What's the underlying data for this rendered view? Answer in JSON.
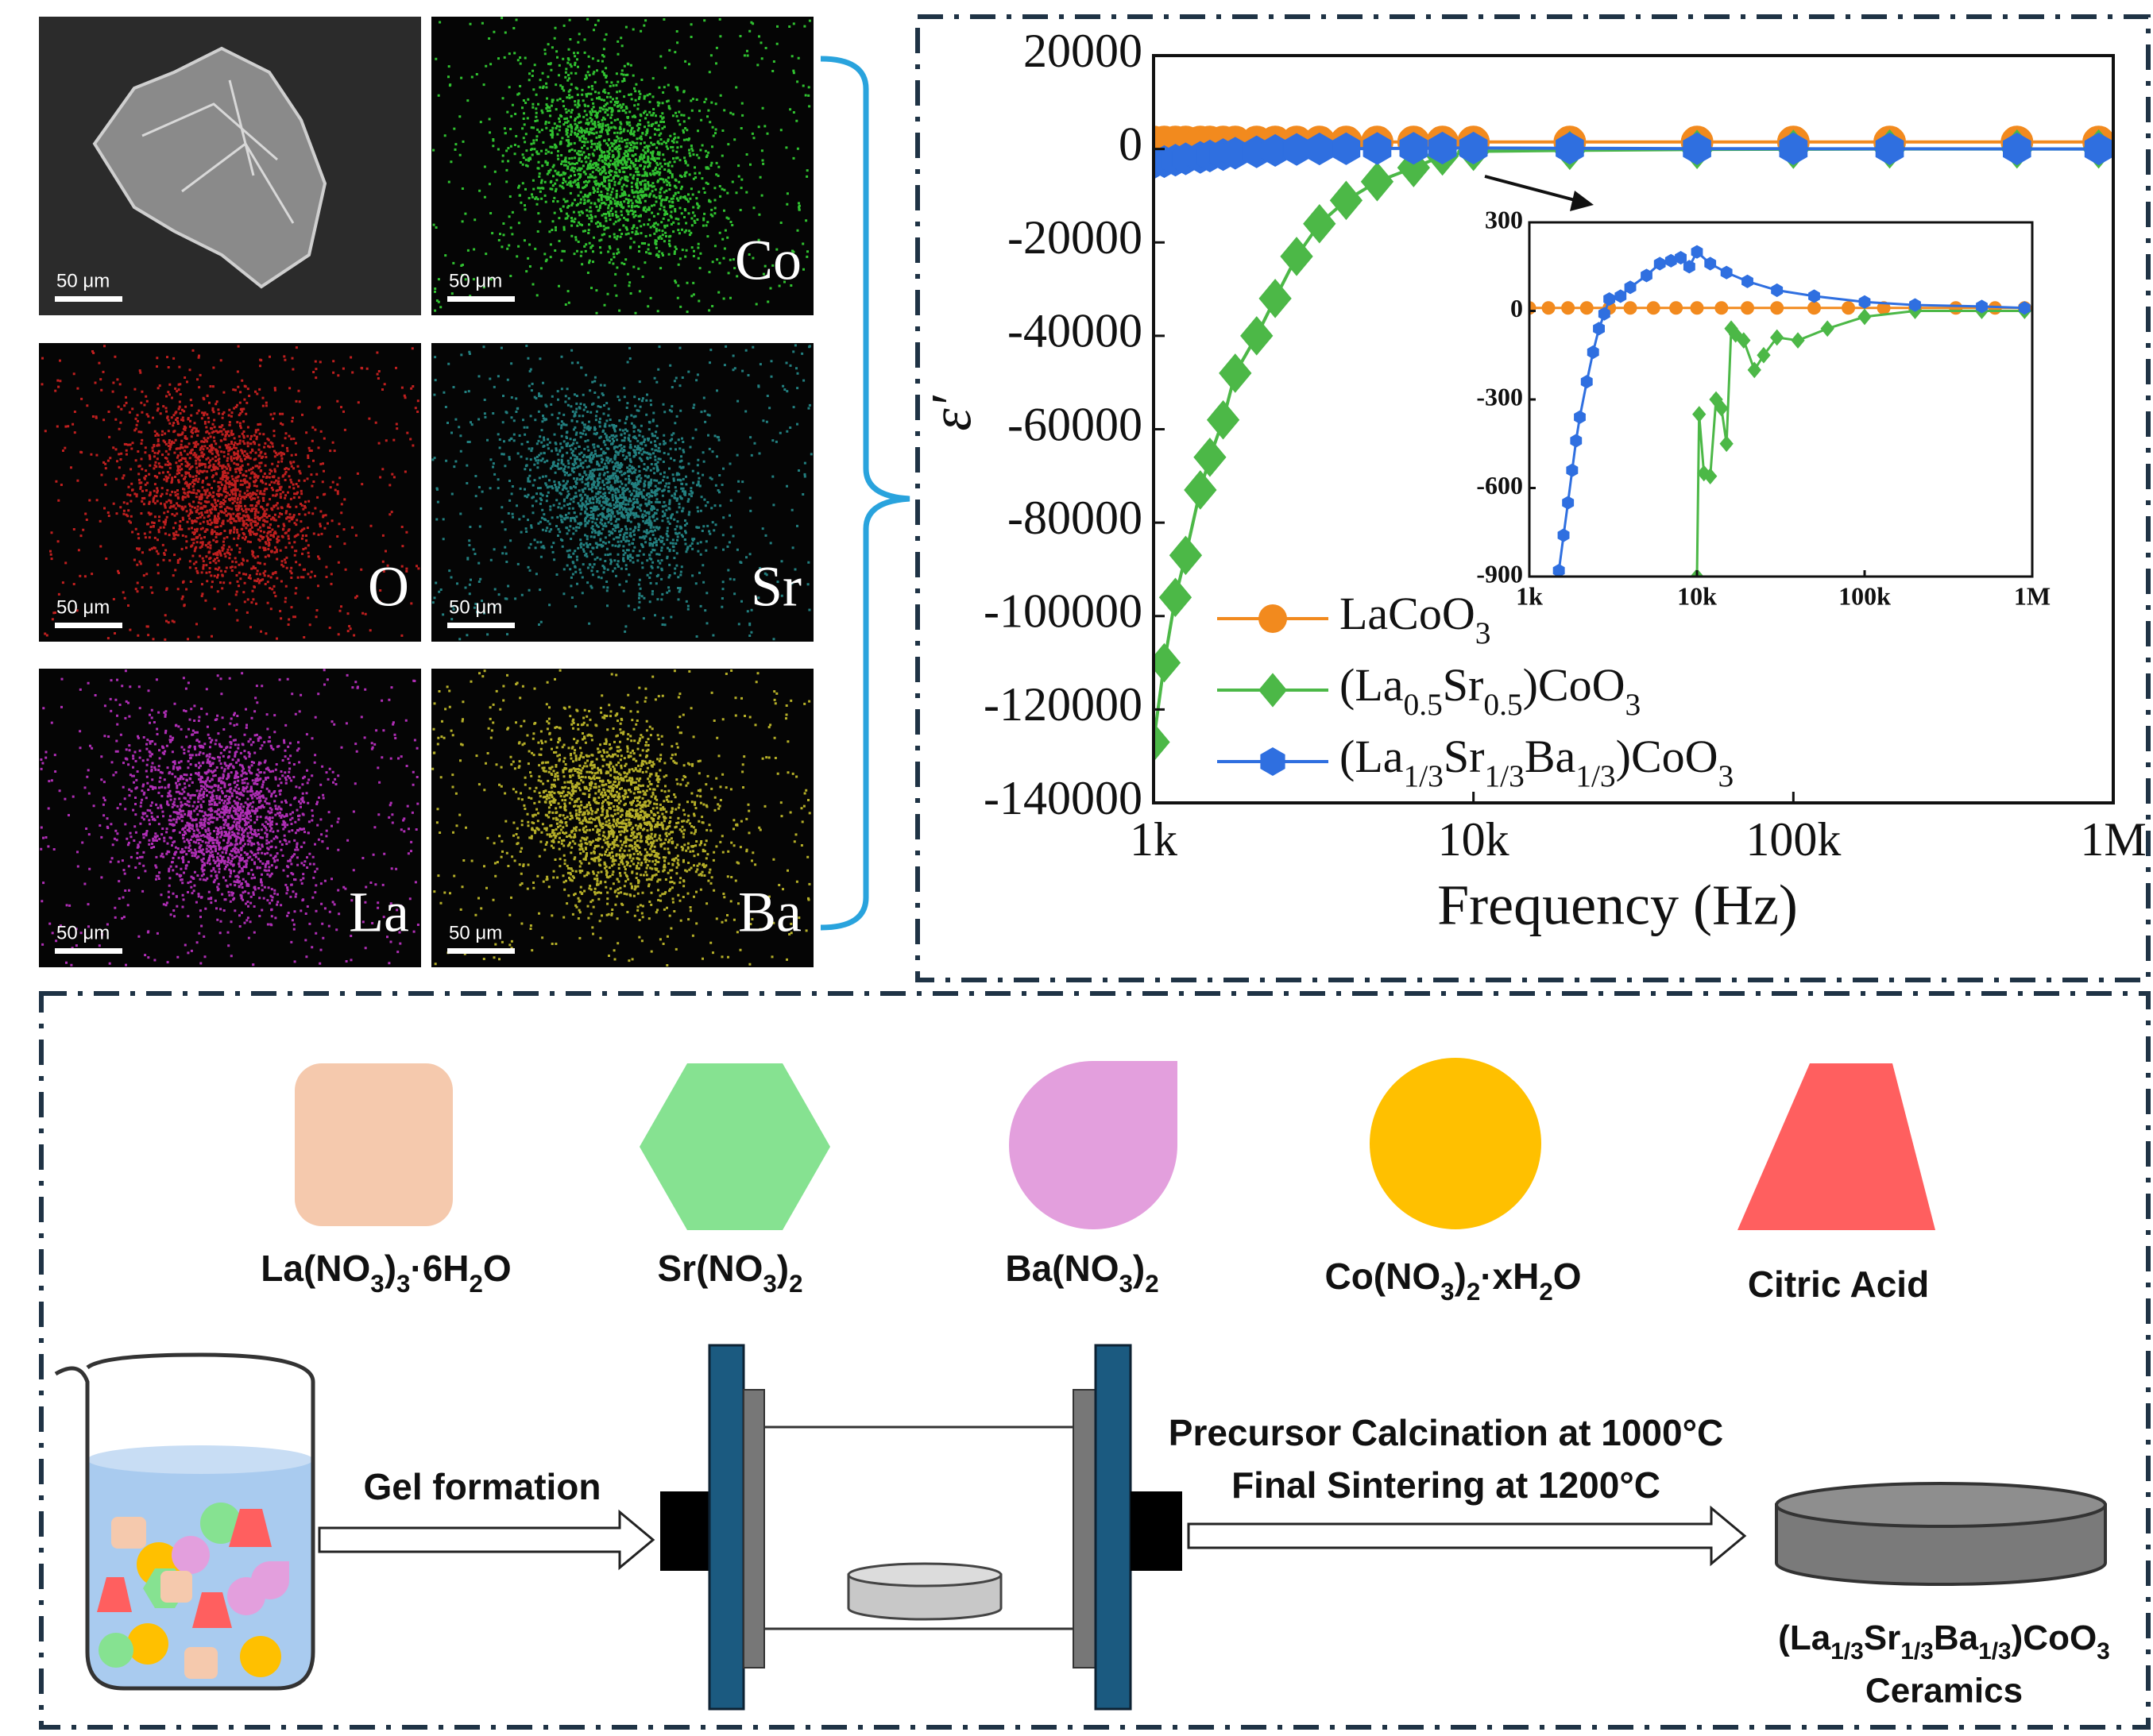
{
  "edx": {
    "panels": [
      {
        "scale_bar": "50 μm"
      },
      {
        "element": "Co",
        "scale_bar": "50 μm"
      },
      {
        "element": "O",
        "scale_bar": "50 μm"
      },
      {
        "element": "Sr",
        "scale_bar": "50 μm"
      },
      {
        "element": "La",
        "scale_bar": "50 μm"
      },
      {
        "element": "Ba",
        "scale_bar": "50 μm"
      }
    ]
  },
  "chart_data": [
    {
      "type": "line",
      "ylabel": "ε′",
      "xlabel": "Frequency (Hz)",
      "xscale": "log",
      "xlim": [
        1000,
        1000000
      ],
      "xticks": [
        {
          "value": 1000,
          "label": "1k"
        },
        {
          "value": 10000,
          "label": "10k"
        },
        {
          "value": 100000,
          "label": "100k"
        },
        {
          "value": 1000000,
          "label": "1M"
        }
      ],
      "ylim": [
        -140000,
        20000
      ],
      "yticks": [
        -140000,
        -120000,
        -100000,
        -80000,
        -60000,
        -40000,
        -20000,
        0,
        20000
      ],
      "legend": "lower left",
      "series": [
        {
          "name": "LaCoO3",
          "color": "#f28a1e",
          "marker": "circle",
          "x": [
            1000,
            1080,
            1170,
            1260,
            1400,
            1500,
            1650,
            1800,
            2100,
            2400,
            2800,
            3300,
            4000,
            5000,
            6500,
            8000,
            10000,
            20000,
            50000,
            100000,
            200000,
            500000,
            900000
          ],
          "values": [
            1500,
            1500,
            1500,
            1500,
            1500,
            1500,
            1500,
            1500,
            1500,
            1500,
            1500,
            1500,
            1500,
            1500,
            1500,
            1500,
            1500,
            1500,
            1500,
            1500,
            1500,
            1500,
            1500
          ]
        },
        {
          "name": "(La0.5Sr0.5)CoO3",
          "color": "#4cb847",
          "marker": "diamond",
          "x": [
            1000,
            1080,
            1170,
            1260,
            1400,
            1500,
            1650,
            1800,
            2100,
            2400,
            2800,
            3300,
            4000,
            5000,
            6500,
            8000,
            10000,
            20000,
            50000,
            100000,
            200000,
            500000,
            900000
          ],
          "values": [
            -127000,
            -110000,
            -96000,
            -87000,
            -73000,
            -66000,
            -58000,
            -48000,
            -40000,
            -32000,
            -23000,
            -16000,
            -11000,
            -7000,
            -4000,
            -1500,
            -500,
            -300,
            -100,
            -50,
            0,
            0,
            0
          ]
        },
        {
          "name": "(La1/3Sr1/3Ba1/3)CoO3",
          "color": "#2f6fe0",
          "marker": "hexagon",
          "x": [
            1000,
            1080,
            1170,
            1260,
            1400,
            1500,
            1650,
            1800,
            2100,
            2400,
            2800,
            3300,
            4000,
            5000,
            6500,
            8000,
            10000,
            20000,
            50000,
            100000,
            200000,
            500000,
            900000
          ],
          "values": [
            -3000,
            -2700,
            -2400,
            -2100,
            -1800,
            -1500,
            -1200,
            -900,
            -600,
            -300,
            -100,
            0,
            50,
            100,
            150,
            200,
            200,
            150,
            80,
            50,
            30,
            20,
            10
          ]
        }
      ]
    },
    {
      "type": "line",
      "xscale": "log",
      "xlim": [
        1000,
        1000000
      ],
      "xticks": [
        {
          "value": 1000,
          "label": "1k"
        },
        {
          "value": 10000,
          "label": "10k"
        },
        {
          "value": 100000,
          "label": "100k"
        },
        {
          "value": 1000000,
          "label": "1M"
        }
      ],
      "ylim": [
        -900,
        300
      ],
      "yticks": [
        -900,
        -600,
        -300,
        0,
        300
      ],
      "series": [
        {
          "color": "#f28a1e",
          "marker": "circle",
          "x": [
            1000,
            1300,
            1700,
            2200,
            3000,
            4000,
            5500,
            7500,
            10000,
            14000,
            20000,
            30000,
            50000,
            80000,
            130000,
            200000,
            350000,
            600000,
            900000
          ],
          "values": [
            10,
            10,
            10,
            10,
            10,
            10,
            10,
            10,
            10,
            10,
            10,
            10,
            10,
            10,
            10,
            10,
            10,
            10,
            10
          ]
        },
        {
          "color": "#4cb847",
          "marker": "diamond",
          "x": [
            10000,
            10300,
            11000,
            12000,
            13000,
            14000,
            15000,
            16000,
            17000,
            19000,
            22000,
            25000,
            30000,
            40000,
            60000,
            100000,
            200000,
            500000,
            900000
          ],
          "values": [
            -900,
            -350,
            -550,
            -560,
            -300,
            -330,
            -450,
            -60,
            -80,
            -100,
            -200,
            -150,
            -90,
            -100,
            -60,
            -20,
            0,
            0,
            0
          ]
        },
        {
          "color": "#2f6fe0",
          "marker": "hexagon",
          "x": [
            1500,
            1600,
            1700,
            1800,
            1900,
            2000,
            2200,
            2400,
            2600,
            2800,
            3000,
            3500,
            4000,
            5000,
            6000,
            7000,
            8000,
            9000,
            10000,
            12000,
            15000,
            20000,
            30000,
            50000,
            100000,
            200000,
            500000,
            900000
          ],
          "values": [
            -880,
            -760,
            -650,
            -540,
            -440,
            -360,
            -240,
            -140,
            -60,
            -10,
            40,
            50,
            80,
            120,
            160,
            170,
            180,
            150,
            200,
            160,
            130,
            100,
            70,
            50,
            30,
            20,
            15,
            10
          ]
        }
      ]
    }
  ],
  "precursors": [
    {
      "label": "La(NO3)3·6H2O"
    },
    {
      "label": "Sr(NO3)2"
    },
    {
      "label": "Ba(NO3)2"
    },
    {
      "label": "Co(NO3)2·xH2O"
    },
    {
      "label": "Citric Acid"
    }
  ],
  "process": {
    "step1": "Gel formation",
    "step2": [
      "Precursor Calcination at 1000°C",
      "Final Sintering at 1200°C"
    ],
    "product": [
      "(La1/3Sr1/3Ba1/3)CoO3",
      "Ceramics"
    ]
  }
}
